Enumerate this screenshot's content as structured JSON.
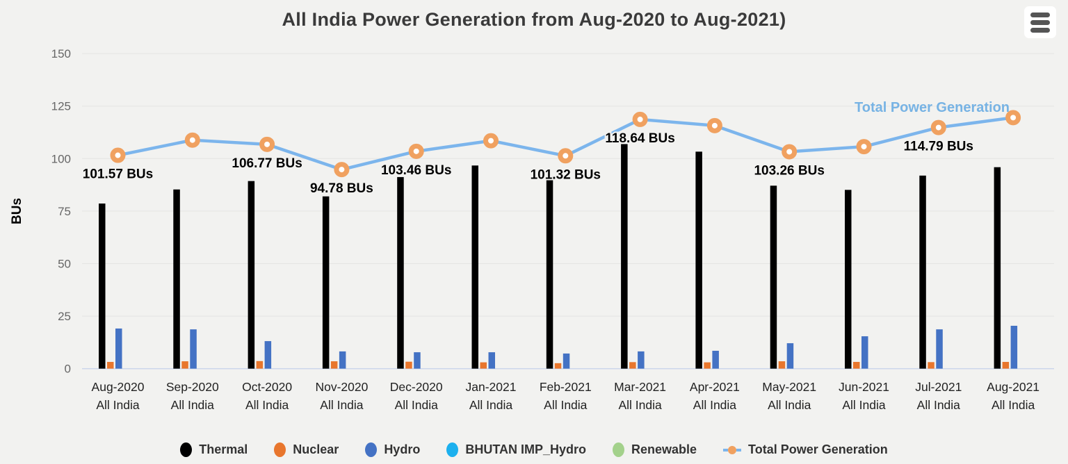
{
  "title": "All India Power Generation from Aug-2020 to Aug-2021)",
  "toolbar": {
    "menu_icon": "hamburger-menu"
  },
  "colors": {
    "background": "#f2f2f0",
    "gridline": "#e4e4e2",
    "axis_line": "#ccd6eb",
    "title_color": "#3a3a3a",
    "tick_label_color": "#666666",
    "x_label_color": "#222222",
    "data_label_color": "#000000",
    "series_label_color": "#77b3e4"
  },
  "chart_data": {
    "type": "bar",
    "title": "All India Power Generation from Aug-2020 to Aug-2021)",
    "xlabel": "",
    "ylabel": "BUs",
    "ylim": [
      0,
      150
    ],
    "yticks": [
      0,
      25,
      50,
      75,
      100,
      125,
      150
    ],
    "grid": "horizontal",
    "legend_position": "bottom",
    "categories": [
      "Aug-2020",
      "Sep-2020",
      "Oct-2020",
      "Nov-2020",
      "Dec-2020",
      "Jan-2021",
      "Feb-2021",
      "Mar-2021",
      "Apr-2021",
      "May-2021",
      "Jun-2021",
      "Jul-2021",
      "Aug-2021"
    ],
    "category_sublabel": "All India",
    "bar_series": [
      {
        "name": "Thermal",
        "color": "#000000",
        "values": [
          78.6,
          85.3,
          89.3,
          82.0,
          91.2,
          96.7,
          90.6,
          106.9,
          103.3,
          87.1,
          85.1,
          91.9,
          95.9
        ]
      },
      {
        "name": "Nuclear",
        "color": "#e8762d",
        "values": [
          3.2,
          3.5,
          3.6,
          3.5,
          3.3,
          3.0,
          2.6,
          3.1,
          3.0,
          3.5,
          3.2,
          3.1,
          3.2
        ]
      },
      {
        "name": "Hydro",
        "color": "#4472c4",
        "values": [
          19.1,
          18.7,
          13.1,
          8.2,
          7.8,
          7.8,
          7.2,
          8.2,
          8.5,
          12.1,
          15.4,
          18.7,
          20.4
        ]
      },
      {
        "name": "BHUTAN IMP_Hydro",
        "color": "#1cb0ee",
        "values": [
          0,
          0,
          0,
          0,
          0,
          0,
          0,
          0,
          0,
          0,
          0,
          0,
          0
        ]
      },
      {
        "name": "Renewable",
        "color": "#a3d18b",
        "values": [
          0,
          0,
          0,
          0,
          0,
          0,
          0,
          0,
          0,
          0,
          0,
          0,
          0
        ]
      }
    ],
    "line_series": {
      "name": "Total Power Generation",
      "color": "#7cb5ec",
      "marker_color": "#f0a160",
      "values": [
        101.57,
        108.8,
        106.77,
        94.78,
        103.46,
        108.5,
        101.32,
        118.64,
        115.7,
        103.26,
        105.7,
        114.79,
        119.5
      ],
      "data_labels": [
        "101.57 BUs",
        null,
        "106.77 BUs",
        "94.78 BUs",
        "103.46 BUs",
        null,
        "101.32 BUs",
        "118.64 BUs",
        null,
        "103.26 BUs",
        null,
        "114.79 BUs",
        null
      ],
      "series_label": "Total Power Generation"
    }
  },
  "legend": {
    "items": [
      {
        "label": "Thermal",
        "color": "#000000",
        "type": "bar"
      },
      {
        "label": "Nuclear",
        "color": "#e8762d",
        "type": "bar"
      },
      {
        "label": "Hydro",
        "color": "#4472c4",
        "type": "bar"
      },
      {
        "label": "BHUTAN IMP_Hydro",
        "color": "#1cb0ee",
        "type": "bar"
      },
      {
        "label": "Renewable",
        "color": "#a3d18b",
        "type": "bar"
      },
      {
        "label": "Total Power Generation",
        "color": "#f0a160",
        "line_color": "#7cb5ec",
        "type": "line"
      }
    ]
  }
}
